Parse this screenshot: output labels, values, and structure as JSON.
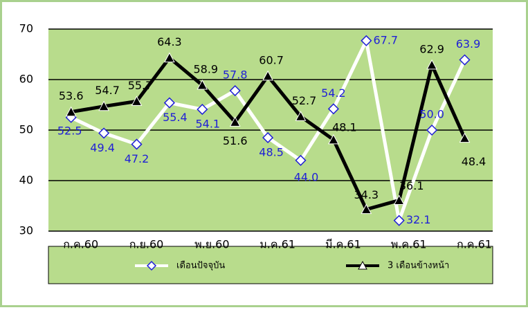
{
  "chart_data": {
    "type": "line",
    "categories": [
      "ก.ค.60",
      null,
      "ก.ย.60",
      null,
      "พ.ย.60",
      null,
      "ม.ค.61",
      null,
      "มี.ค.61",
      null,
      "พ.ค.61",
      null,
      "ก.ค.61"
    ],
    "series": [
      {
        "name": "เดือนปัจจุบัน",
        "color": "#ffffff",
        "label_color": "#1f1fd6",
        "marker": "diamond",
        "values": [
          52.5,
          49.4,
          47.2,
          55.4,
          54.1,
          57.8,
          48.5,
          44.0,
          54.2,
          67.7,
          32.1,
          50.0,
          63.9
        ],
        "value_labels": [
          "52.5",
          "49.4",
          "47.2",
          "55.4",
          "54.1",
          "57.8",
          "48.5",
          "44.0",
          "54.2",
          "67.7",
          "32.1",
          "50.0",
          "63.9"
        ]
      },
      {
        "name": "3 เดือนข้างหน้า",
        "color": "#000000",
        "label_color": "#000000",
        "marker": "triangle",
        "values": [
          53.6,
          54.7,
          55.7,
          64.3,
          58.9,
          51.6,
          60.7,
          52.7,
          48.1,
          34.3,
          36.1,
          62.9,
          48.4
        ],
        "value_labels": [
          "53.6",
          "54.7",
          "55.7",
          "64.3",
          "58.9",
          "51.6",
          "60.7",
          "52.7",
          "48.1",
          "34.3",
          "36.1",
          "62.9",
          "48.4"
        ]
      }
    ],
    "ylim": [
      30,
      70
    ],
    "yticks": [
      30,
      40,
      50,
      60,
      70
    ],
    "grid": true
  }
}
